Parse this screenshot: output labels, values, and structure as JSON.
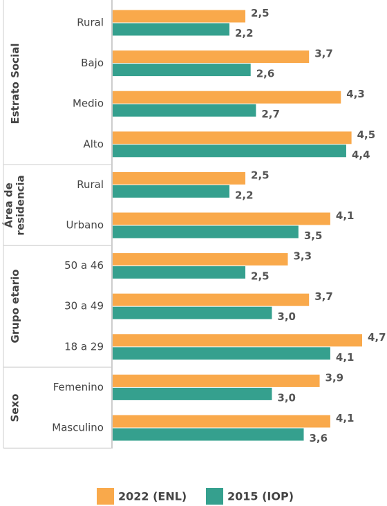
{
  "chart_data": {
    "type": "bar",
    "orientation": "horizontal",
    "groups": [
      {
        "label": "Estrato Social",
        "categories": [
          "Rural",
          "Bajo",
          "Medio",
          "Alto"
        ]
      },
      {
        "label": "Área de residencia",
        "categories": [
          "Rural",
          "Urbano"
        ]
      },
      {
        "label": "Grupo etario",
        "categories": [
          "50 a 46",
          "30 a 49",
          "18 a 29"
        ]
      },
      {
        "label": "Sexo",
        "categories": [
          "Femenino",
          "Masculino"
        ]
      }
    ],
    "series": [
      {
        "name": "2022 (ENL)",
        "color": "#f9a94b",
        "values": [
          2.5,
          3.7,
          4.3,
          4.5,
          2.5,
          4.1,
          3.3,
          3.7,
          4.7,
          3.9,
          4.1
        ],
        "value_labels": [
          "2,5",
          "3,7",
          "4,3",
          "4,5",
          "2,5",
          "4,1",
          "3,3",
          "3,7",
          "4,7",
          "3,9",
          "4,1"
        ]
      },
      {
        "name": "2015 (IOP)",
        "color": "#35a08e",
        "values": [
          2.2,
          2.6,
          2.7,
          4.4,
          2.2,
          3.5,
          2.5,
          3.0,
          4.1,
          3.0,
          3.6
        ],
        "value_labels": [
          "2,2",
          "2,6",
          "2,7",
          "4,4",
          "2,2",
          "3,5",
          "2,5",
          "3,0",
          "4,1",
          "3,0",
          "3,6"
        ]
      }
    ],
    "legend": "bottom"
  }
}
